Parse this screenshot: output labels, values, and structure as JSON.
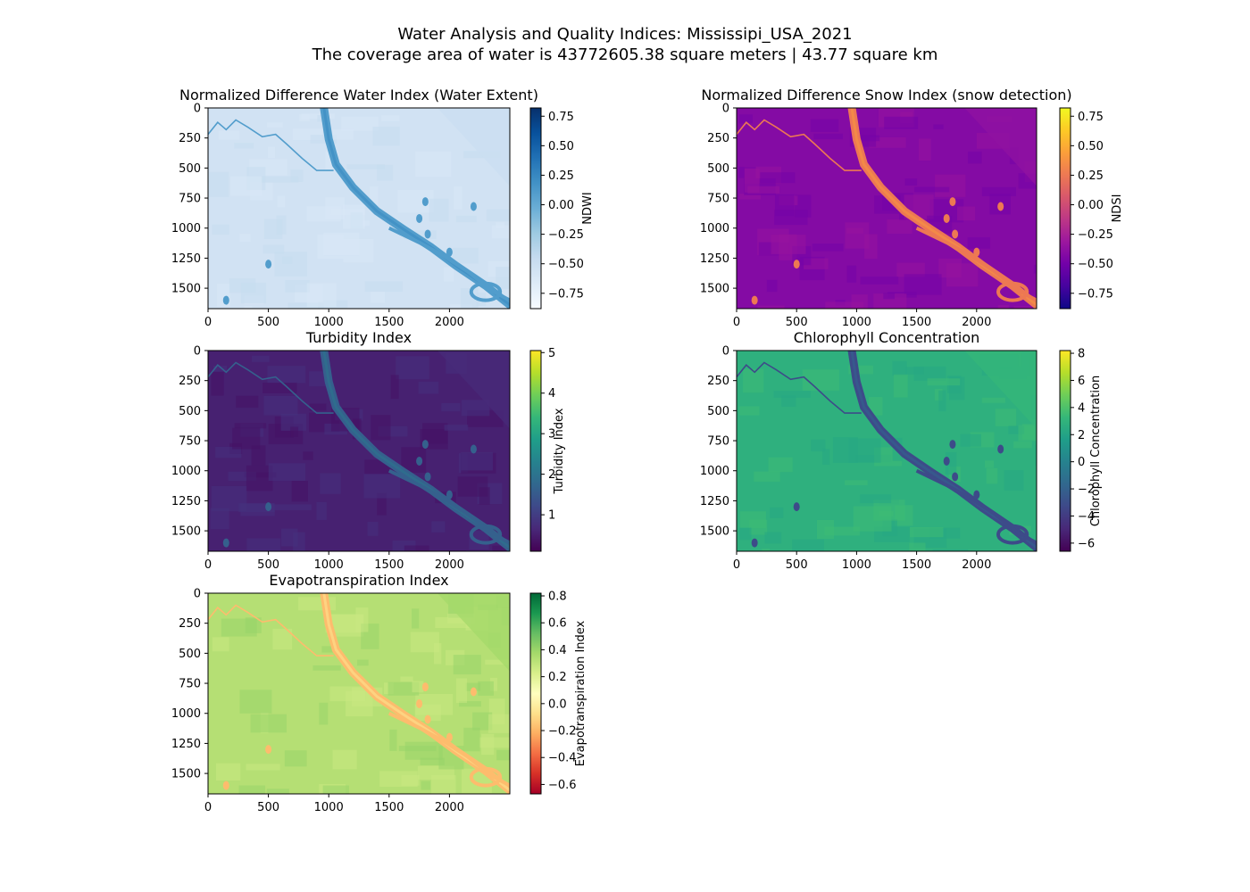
{
  "figure": {
    "title_line1": "Water Analysis and Quality Indices: Mississipi_USA_2021",
    "title_line2": "The coverage area of water is 43772605.38 square meters | 43.77 square km"
  },
  "chart_data": [
    {
      "type": "heatmap",
      "title": "Normalized Difference Water Index (Water Extent)",
      "colorbar_label": "NDWI",
      "colormap": [
        "#f7fbff",
        "#deebf7",
        "#c6dbef",
        "#9ecae1",
        "#6baed6",
        "#4292c6",
        "#2171b5",
        "#08519c",
        "#08306b"
      ],
      "xlim": [
        0,
        2500
      ],
      "ylim": [
        1670,
        0
      ],
      "xticks": [
        0,
        500,
        1000,
        1500,
        2000
      ],
      "yticks": [
        0,
        250,
        500,
        750,
        1000,
        1250,
        1500
      ],
      "value_range": [
        -0.88,
        0.82
      ],
      "colorbar_ticks": [
        "0.75",
        "0.50",
        "0.25",
        "0.00",
        "−0.25",
        "−0.50",
        "−0.75"
      ],
      "colorbar_tick_values": [
        0.75,
        0.5,
        0.25,
        0.0,
        -0.25,
        -0.5,
        -0.75
      ],
      "background_value": -0.55,
      "river_value": 0.1
    },
    {
      "type": "heatmap",
      "title": "Normalized Difference Snow Index (snow detection)",
      "colorbar_label": "NDSI",
      "colormap": [
        "#0d0887",
        "#46039f",
        "#7201a8",
        "#9c179e",
        "#bd3786",
        "#d8576b",
        "#ed7953",
        "#fb9f3a",
        "#fdca26",
        "#f0f921"
      ],
      "xlim": [
        0,
        2500
      ],
      "ylim": [
        1670,
        0
      ],
      "xticks": [
        0,
        500,
        1000,
        1500,
        2000
      ],
      "yticks": [
        0,
        250,
        500,
        750,
        1000,
        1250,
        1500
      ],
      "value_range": [
        -0.88,
        0.82
      ],
      "colorbar_ticks": [
        "0.75",
        "0.50",
        "0.25",
        "0.00",
        "−0.25",
        "−0.50",
        "−0.75"
      ],
      "colorbar_tick_values": [
        0.75,
        0.5,
        0.25,
        0.0,
        -0.25,
        -0.5,
        -0.75
      ],
      "background_value": -0.42,
      "river_value": 0.25
    },
    {
      "type": "heatmap",
      "title": "Turbidity Index",
      "colorbar_label": "Turbidity Index",
      "colormap": [
        "#440154",
        "#482878",
        "#3e4989",
        "#31688e",
        "#26828e",
        "#1f9e89",
        "#35b779",
        "#6ece58",
        "#b5de2b",
        "#fde725"
      ],
      "xlim": [
        0,
        2500
      ],
      "ylim": [
        1670,
        0
      ],
      "xticks": [
        0,
        500,
        1000,
        1500,
        2000
      ],
      "yticks": [
        0,
        250,
        500,
        750,
        1000,
        1250,
        1500
      ],
      "value_range": [
        0.1,
        5.05
      ],
      "colorbar_ticks": [
        "5",
        "4",
        "3",
        "2",
        "1"
      ],
      "colorbar_tick_values": [
        5,
        4,
        3,
        2,
        1
      ],
      "background_value": 0.55,
      "river_value": 1.6
    },
    {
      "type": "heatmap",
      "title": "Chlorophyll Concentration",
      "colorbar_label": "Chlorophyll Concentration",
      "colormap": [
        "#440154",
        "#482878",
        "#3e4989",
        "#31688e",
        "#26828e",
        "#1f9e89",
        "#35b779",
        "#6ece58",
        "#b5de2b",
        "#fde725"
      ],
      "xlim": [
        0,
        2500
      ],
      "ylim": [
        1670,
        0
      ],
      "xticks": [
        0,
        500,
        1000,
        1500,
        2000
      ],
      "yticks": [
        0,
        250,
        500,
        750,
        1000,
        1250,
        1500
      ],
      "value_range": [
        -6.6,
        8.2
      ],
      "colorbar_ticks": [
        "8",
        "6",
        "4",
        "2",
        "0",
        "−2",
        "−4",
        "−6"
      ],
      "colorbar_tick_values": [
        8,
        6,
        4,
        2,
        0,
        -2,
        -4,
        -6
      ],
      "background_value": 2.8,
      "river_value": -3.2
    },
    {
      "type": "heatmap",
      "title": "Evapotranspiration Index",
      "colorbar_label": "Evapotranspiration Index",
      "colormap": [
        "#a50026",
        "#d73027",
        "#f46d43",
        "#fdae61",
        "#fee08b",
        "#ffffbf",
        "#d9ef8b",
        "#a6d96a",
        "#66bd63",
        "#1a9850",
        "#006837"
      ],
      "xlim": [
        0,
        2500
      ],
      "ylim": [
        1670,
        0
      ],
      "xticks": [
        0,
        500,
        1000,
        1500,
        2000
      ],
      "yticks": [
        0,
        250,
        500,
        750,
        1000,
        1250,
        1500
      ],
      "value_range": [
        -0.67,
        0.82
      ],
      "colorbar_ticks": [
        "0.8",
        "0.6",
        "0.4",
        "0.2",
        "0.0",
        "−0.2",
        "−0.4",
        "−0.6"
      ],
      "colorbar_tick_values": [
        0.8,
        0.6,
        0.4,
        0.2,
        0.0,
        -0.2,
        -0.4,
        -0.6
      ],
      "background_value": 0.33,
      "river_value": -0.18
    }
  ]
}
